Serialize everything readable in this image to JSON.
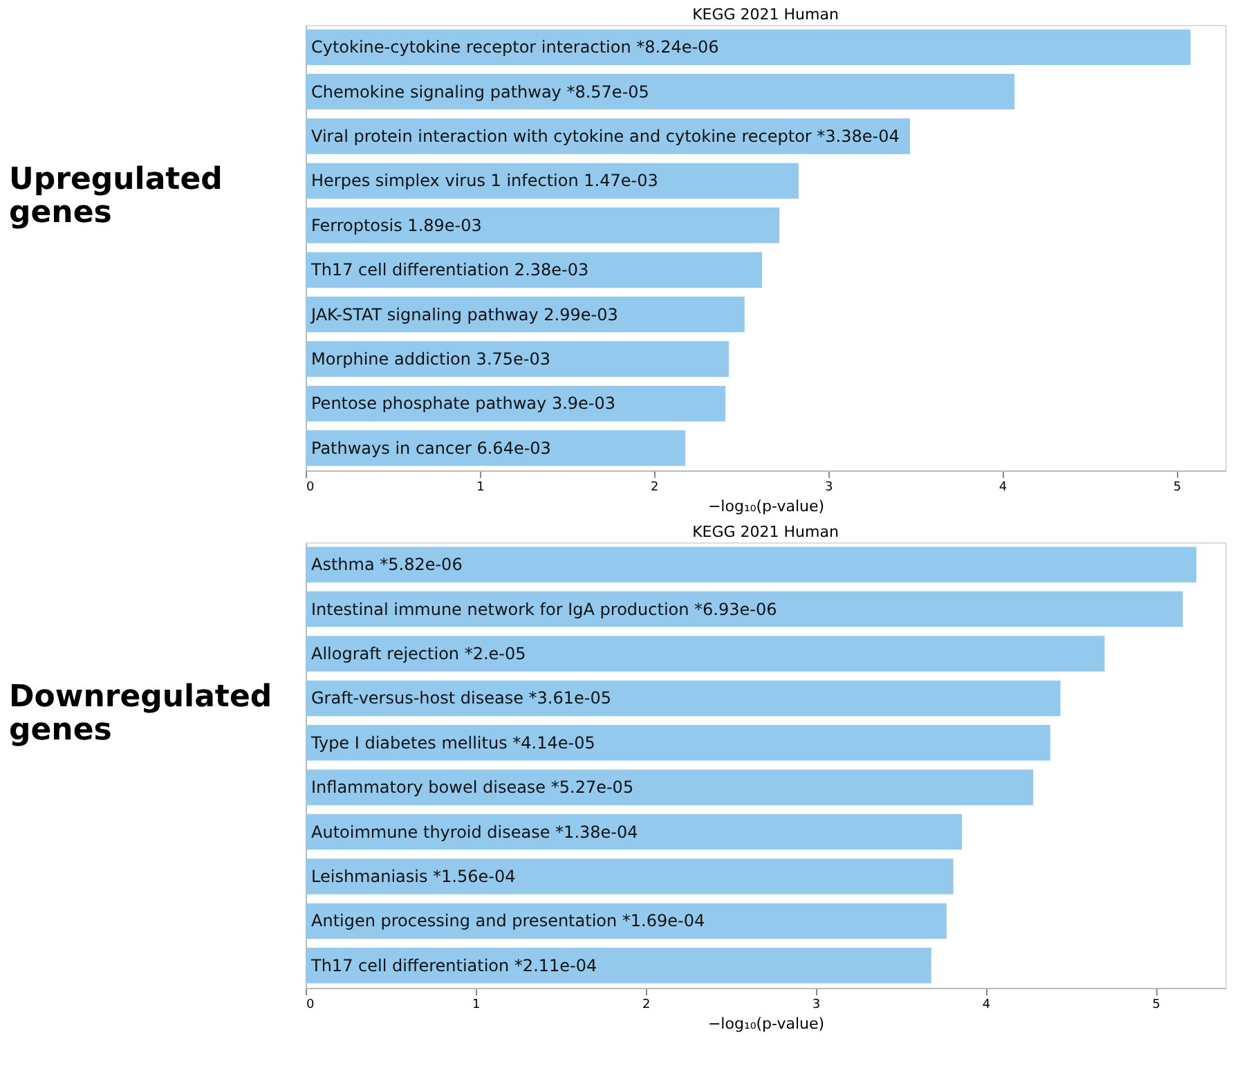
{
  "chart_data": [
    {
      "type": "bar",
      "orientation": "horizontal",
      "title": "KEGG 2021 Human",
      "ylabel": "Upregulated genes",
      "xlabel": "−log₁₀(p-value)",
      "categories": [
        "Cytokine-cytokine receptor interaction  *8.24e-06",
        "Chemokine signaling pathway  *8.57e-05",
        "Viral protein interaction with cytokine and cytokine receptor  *3.38e-04",
        "Herpes simplex virus 1 infection  1.47e-03",
        "Ferroptosis  1.89e-03",
        "Th17 cell differentiation  2.38e-03",
        "JAK-STAT signaling pathway  2.99e-03",
        "Morphine addiction  3.75e-03",
        "Pentose phosphate pathway  3.9e-03",
        "Pathways in cancer  6.64e-03"
      ],
      "values": [
        5.08,
        4.07,
        3.47,
        2.83,
        2.72,
        2.62,
        2.52,
        2.43,
        2.41,
        2.18
      ],
      "color": "#92c9ed",
      "xlim": [
        0,
        5.28
      ],
      "xticks": [
        0,
        1,
        2,
        3,
        4,
        5
      ],
      "tick_labels": "x"
    },
    {
      "type": "bar",
      "orientation": "horizontal",
      "title": "KEGG 2021 Human",
      "ylabel": "Downregulated genes",
      "xlabel": "−log₁₀(p-value)",
      "categories": [
        "Asthma  *5.82e-06",
        "Intestinal immune network for IgA production  *6.93e-06",
        "Allograft rejection  *2.e-05",
        "Graft-versus-host disease  *3.61e-05",
        "Type I diabetes mellitus  *4.14e-05",
        "Inflammatory bowel disease  *5.27e-05",
        "Autoimmune thyroid disease  *1.38e-04",
        "Leishmaniasis  *1.56e-04",
        "Antigen processing and presentation  *1.69e-04",
        "Th17 cell differentiation  *2.11e-04"
      ],
      "values": [
        5.24,
        5.16,
        4.7,
        4.44,
        4.38,
        4.28,
        3.86,
        3.81,
        3.77,
        3.68
      ],
      "color": "#92c9ed",
      "xlim": [
        0,
        5.41
      ],
      "xticks": [
        0,
        1,
        2,
        3,
        4,
        5
      ],
      "tick_labels": "x"
    }
  ]
}
